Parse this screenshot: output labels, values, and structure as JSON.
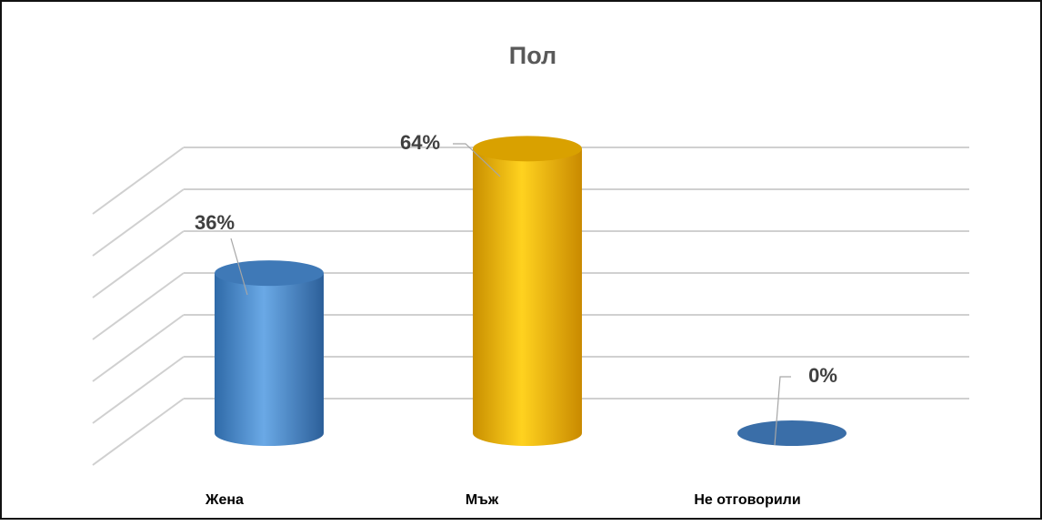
{
  "chart_data": {
    "type": "bar",
    "title": "Пол",
    "categories": [
      "Жена",
      "Мъж",
      "Не отговорили"
    ],
    "values": [
      36,
      64,
      0
    ],
    "data_labels": [
      "36%",
      "64%",
      "0%"
    ],
    "unit": "%",
    "ylim": [
      0,
      70
    ],
    "gridlines": 7,
    "grid": true,
    "legend": "none",
    "bar_shape": "cylinder-3d",
    "colors": [
      "#5b9bd5",
      "#ffc000",
      "#4a7fb5"
    ]
  }
}
